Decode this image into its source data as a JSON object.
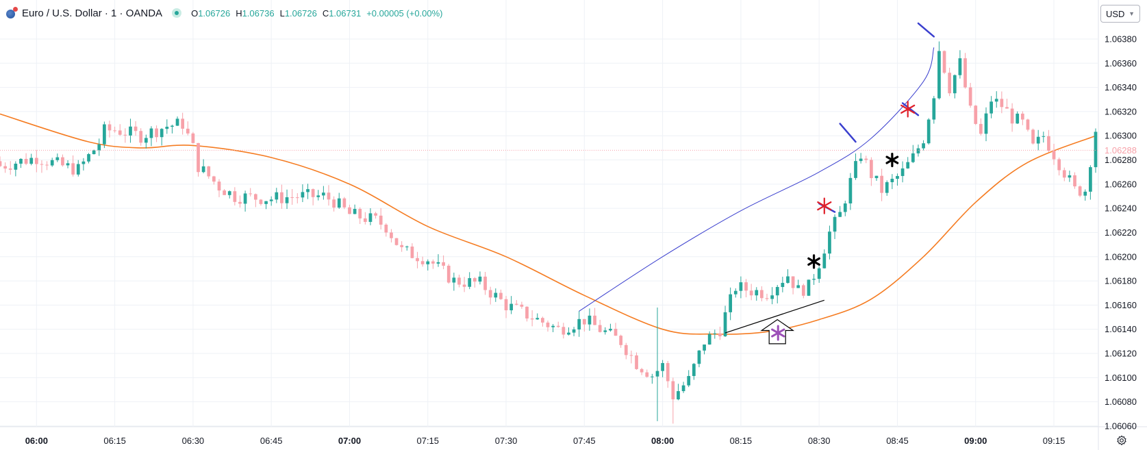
{
  "header": {
    "symbol_title": "Euro / U.S. Dollar · 1 · OANDA",
    "ohlc": [
      {
        "label": "O",
        "value": "1.06726"
      },
      {
        "label": "H",
        "value": "1.06736"
      },
      {
        "label": "L",
        "value": "1.06726"
      },
      {
        "label": "C",
        "value": "1.06731"
      },
      {
        "label": "",
        "value": "+0.00005 (+0.00%)"
      }
    ],
    "logo_icon": "globe-logo-icon",
    "status_icon": "market-open-dot-icon"
  },
  "price_scale": {
    "currency_label": "USD",
    "current_price_label": "1.06288",
    "current_price_color": "#f7a1a9"
  },
  "colors": {
    "up": "#26a69a",
    "down": "#f7a1a9",
    "ma": "#f57c22",
    "curve": "#3a3fce",
    "red_marker": "#e0202a",
    "purple_marker": "#9c4fb8"
  },
  "chart_data": {
    "type": "candlestick",
    "timeframe": "1 minute",
    "ylim": [
      1.0606,
      1.0641
    ],
    "y_ticks": [
      "1.06060",
      "1.06080",
      "1.06100",
      "1.06120",
      "1.06140",
      "1.06160",
      "1.06180",
      "1.06200",
      "1.06220",
      "1.06240",
      "1.06260",
      "1.06280",
      "1.06300",
      "1.06320",
      "1.06340",
      "1.06360",
      "1.06380"
    ],
    "x_ticks": [
      {
        "label": "06:00",
        "major": true
      },
      {
        "label": "06:15",
        "major": false
      },
      {
        "label": "06:30",
        "major": false
      },
      {
        "label": "06:45",
        "major": false
      },
      {
        "label": "07:00",
        "major": true
      },
      {
        "label": "07:15",
        "major": false
      },
      {
        "label": "07:30",
        "major": false
      },
      {
        "label": "07:45",
        "major": false
      },
      {
        "label": "08:00",
        "major": true
      },
      {
        "label": "08:15",
        "major": false
      },
      {
        "label": "08:30",
        "major": false
      },
      {
        "label": "08:45",
        "major": false
      },
      {
        "label": "09:00",
        "major": true
      },
      {
        "label": "09:15",
        "major": false
      }
    ],
    "time_range": [
      "05:53",
      "09:23"
    ],
    "anchors": [
      [
        "05:53",
        1.06275
      ],
      [
        "06:00",
        1.06282
      ],
      [
        "06:05",
        1.06275
      ],
      [
        "06:08",
        1.06272
      ],
      [
        "06:12",
        1.06294
      ],
      [
        "06:13",
        1.06304
      ],
      [
        "06:15",
        1.06305
      ],
      [
        "06:20",
        1.063
      ],
      [
        "06:25",
        1.06308
      ],
      [
        "06:28",
        1.0631
      ],
      [
        "06:30",
        1.0629
      ],
      [
        "06:31",
        1.06275
      ],
      [
        "06:35",
        1.06258
      ],
      [
        "06:38",
        1.0625
      ],
      [
        "06:45",
        1.06248
      ],
      [
        "06:50",
        1.0625
      ],
      [
        "06:55",
        1.0625
      ],
      [
        "06:57",
        1.06246
      ],
      [
        "07:00",
        1.06235
      ],
      [
        "07:05",
        1.0623
      ],
      [
        "07:07",
        1.06225
      ],
      [
        "07:10",
        1.06205
      ],
      [
        "07:15",
        1.06198
      ],
      [
        "07:20",
        1.0618
      ],
      [
        "07:25",
        1.06178
      ],
      [
        "07:30",
        1.0616
      ],
      [
        "07:35",
        1.0615
      ],
      [
        "07:40",
        1.0614
      ],
      [
        "07:45",
        1.06148
      ],
      [
        "07:48",
        1.0614
      ],
      [
        "07:52",
        1.0613
      ],
      [
        "07:55",
        1.06112
      ],
      [
        "07:58",
        1.06102
      ],
      [
        "08:00",
        1.0611
      ],
      [
        "08:02",
        1.06085
      ],
      [
        "08:05",
        1.06098
      ],
      [
        "08:08",
        1.0613
      ],
      [
        "08:11",
        1.0614
      ],
      [
        "08:14",
        1.06175
      ],
      [
        "08:17",
        1.06172
      ],
      [
        "08:20",
        1.0617
      ],
      [
        "08:22",
        1.06178
      ],
      [
        "08:24",
        1.06185
      ],
      [
        "08:26",
        1.06172
      ],
      [
        "08:28",
        1.06175
      ],
      [
        "08:30",
        1.06195
      ],
      [
        "08:32",
        1.0622
      ],
      [
        "08:34",
        1.06235
      ],
      [
        "08:36",
        1.06262
      ],
      [
        "08:38",
        1.06285
      ],
      [
        "08:40",
        1.06268
      ],
      [
        "08:42",
        1.06255
      ],
      [
        "08:44",
        1.06262
      ],
      [
        "08:46",
        1.0627
      ],
      [
        "08:48",
        1.06282
      ],
      [
        "08:50",
        1.06298
      ],
      [
        "08:52",
        1.06335
      ],
      [
        "08:53",
        1.06372
      ],
      [
        "08:55",
        1.0634
      ],
      [
        "08:57",
        1.0636
      ],
      [
        "08:59",
        1.0632
      ],
      [
        "09:01",
        1.063
      ],
      [
        "09:03",
        1.0633
      ],
      [
        "09:05",
        1.06325
      ],
      [
        "09:07",
        1.06315
      ],
      [
        "09:09",
        1.0631
      ],
      [
        "09:11",
        1.0629
      ],
      [
        "09:13",
        1.063
      ],
      [
        "09:15",
        1.06285
      ],
      [
        "09:17",
        1.0627
      ],
      [
        "09:19",
        1.06255
      ],
      [
        "09:21",
        1.06255
      ],
      [
        "09:23",
        1.06305
      ]
    ],
    "wick_extremes": [
      {
        "time": "07:59",
        "high": 1.06158,
        "low": 1.06064
      },
      {
        "time": "08:02",
        "high": 1.061,
        "low": 1.06062
      },
      {
        "time": "08:53",
        "high": 1.06378,
        "low": 1.0633
      }
    ],
    "moving_average": [
      [
        "05:53",
        1.06318
      ],
      [
        "06:10",
        1.06295
      ],
      [
        "06:20",
        1.0629
      ],
      [
        "06:30",
        1.06292
      ],
      [
        "06:45",
        1.06282
      ],
      [
        "07:00",
        1.0626
      ],
      [
        "07:15",
        1.06225
      ],
      [
        "07:30",
        1.062
      ],
      [
        "07:45",
        1.06168
      ],
      [
        "08:00",
        1.0614
      ],
      [
        "08:10",
        1.06136
      ],
      [
        "08:20",
        1.06138
      ],
      [
        "08:30",
        1.06148
      ],
      [
        "08:40",
        1.06165
      ],
      [
        "08:50",
        1.062
      ],
      [
        "09:00",
        1.06245
      ],
      [
        "09:10",
        1.06278
      ],
      [
        "09:23",
        1.063
      ]
    ],
    "annotations": {
      "blue_curve": [
        [
          "07:44",
          1.06155
        ],
        [
          "08:00",
          1.062
        ],
        [
          "08:15",
          1.06238
        ],
        [
          "08:30",
          1.0627
        ],
        [
          "08:40",
          1.06298
        ],
        [
          "08:50",
          1.06345
        ],
        [
          "08:52",
          1.06373
        ]
      ],
      "blue_ticks": [
        {
          "from": [
            "08:34",
            1.0631
          ],
          "to": [
            "08:37",
            1.06295
          ]
        },
        {
          "from": [
            "08:49",
            1.06393
          ],
          "to": [
            "08:52",
            1.06382
          ]
        },
        {
          "from": [
            "08:30",
            1.06244
          ],
          "to": [
            "08:33",
            1.06237
          ]
        },
        {
          "from": [
            "08:46",
            1.06327
          ],
          "to": [
            "08:49",
            1.06317
          ]
        }
      ],
      "black_trendline": {
        "from": [
          "08:12",
          1.06137
        ],
        "to": [
          "08:31",
          1.06164
        ]
      },
      "asterisks": [
        {
          "time": "08:29",
          "price": 1.06196,
          "color": "black"
        },
        {
          "time": "08:44",
          "price": 1.0628,
          "color": "black"
        },
        {
          "time": "08:31",
          "price": 1.06242,
          "color": "red"
        },
        {
          "time": "08:47",
          "price": 1.06322,
          "color": "red"
        }
      ],
      "arrow_up": {
        "time": "08:22",
        "price_top": 1.06148,
        "price_bottom": 1.06128
      },
      "arrow_asterisk_color": "purple"
    }
  },
  "footer": {
    "settings_icon": "settings-gear-icon"
  }
}
